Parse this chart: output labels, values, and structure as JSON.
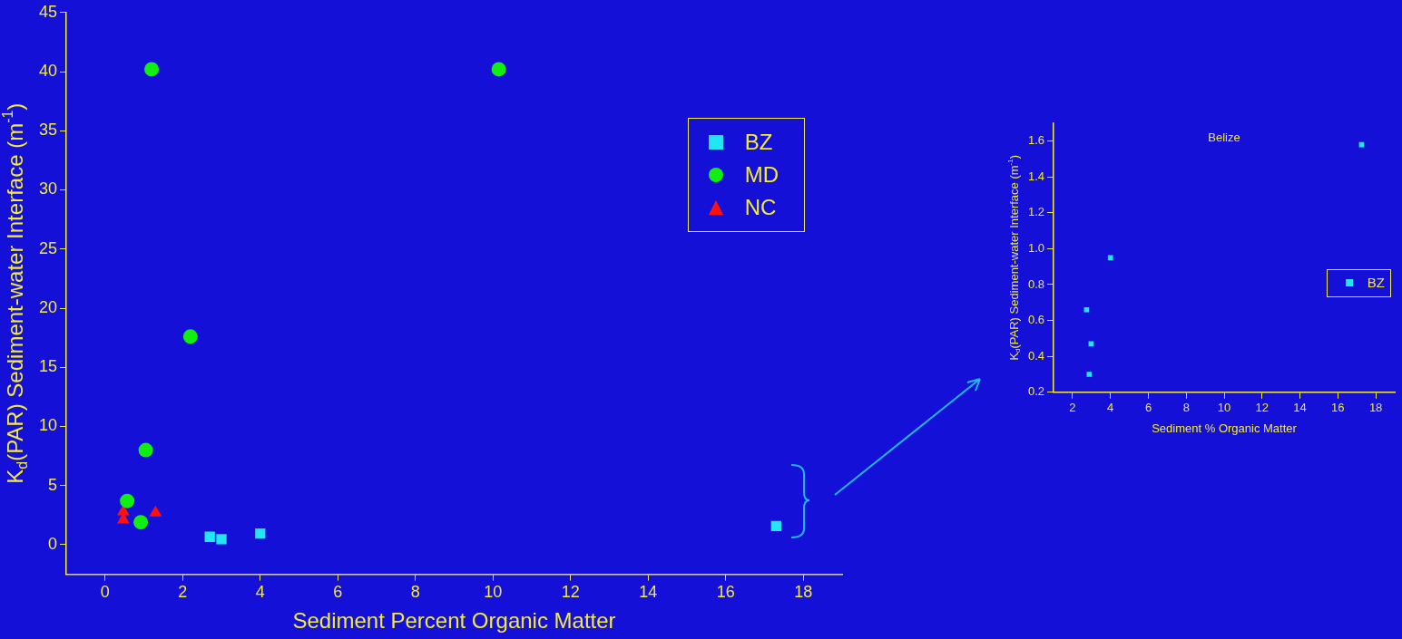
{
  "chart_data": [
    {
      "type": "scatter",
      "xlabel": "Sediment Percent Organic Matter",
      "ylabel": "K$_{d}$(PAR) Sediment-water Interface (m$^{-1}$)",
      "xlim": [
        -1,
        19
      ],
      "ylim": [
        -2.5,
        45
      ],
      "xticks": [
        0,
        2,
        4,
        6,
        8,
        10,
        12,
        14,
        16,
        18
      ],
      "yticks": [
        0,
        5,
        10,
        15,
        20,
        25,
        30,
        35,
        40,
        45
      ],
      "grid": false,
      "legend": "top right",
      "series": [
        {
          "name": "BZ",
          "color": "#22e6f5",
          "marker": "square",
          "x": [
            2.7,
            2.9,
            3.0,
            4.0,
            17.3
          ],
          "values": [
            0.67,
            null,
            0.47,
            0.95,
            1.58
          ]
        },
        {
          "name": "MD",
          "color": "#11ee11",
          "marker": "circle",
          "x": [
            1.2,
            10.15,
            2.2,
            1.05,
            0.57,
            0.92
          ],
          "values": [
            40.2,
            40.2,
            17.6,
            8.0,
            3.7,
            1.9
          ]
        },
        {
          "name": "NC",
          "color": "#ff1010",
          "marker": "triangle",
          "x": [
            0.47,
            0.47,
            1.3
          ],
          "values": [
            2.8,
            2.1,
            2.7
          ]
        }
      ]
    },
    {
      "type": "scatter",
      "xlabel": "Sediment % Organic Matter",
      "ylabel": "K$_{d}$(PAR) Sediment-water Interface (m$^{-1}$)",
      "xlim": [
        1,
        19
      ],
      "ylim": [
        0.2,
        1.7
      ],
      "xticks": [
        2,
        4,
        6,
        8,
        10,
        12,
        14,
        16,
        18
      ],
      "yticks": [
        {
          "value": 0.2,
          "label": "0.2"
        },
        {
          "value": 0.4,
          "label": "0.4"
        },
        {
          "value": 0.6,
          "label": "0.6"
        },
        {
          "value": 0.8,
          "label": "0.8"
        },
        {
          "value": 1.0,
          "label": "1.0"
        },
        {
          "value": 1.2,
          "label": "1.2"
        },
        {
          "value": 1.4,
          "label": "1.4"
        },
        {
          "value": 1.6,
          "label": "1.6"
        }
      ],
      "grid": false,
      "legend": "right",
      "annotations": [
        "Belize"
      ],
      "series": [
        {
          "name": "BZ",
          "color": "#22e6f5",
          "marker": "square",
          "x": [
            2.74,
            2.88,
            2.98,
            4.0,
            17.25
          ],
          "values": [
            0.66,
            0.3,
            0.47,
            0.95,
            1.58
          ]
        }
      ]
    }
  ]
}
